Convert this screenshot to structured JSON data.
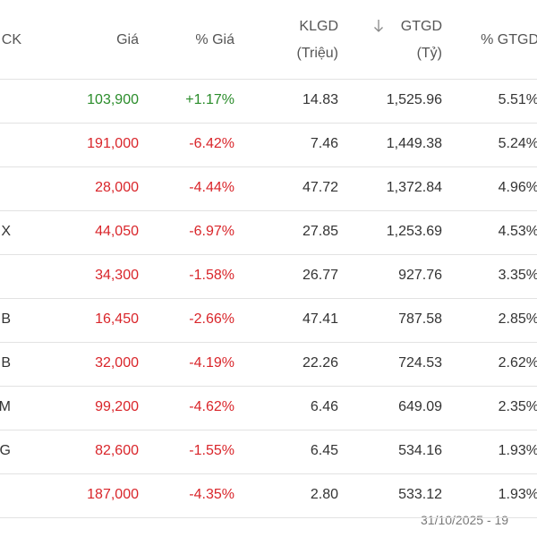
{
  "table": {
    "header": [
      "CK",
      "Giá",
      "% Giá",
      [
        "KLGD",
        "(Triệu)"
      ],
      [
        "GTGD",
        "(Tỷ)"
      ],
      "% GTGD"
    ],
    "rows": [
      [
        null,
        "103,900",
        "+1.17%",
        "14.83",
        "1,525.96",
        "5.51%"
      ],
      [
        null,
        "191,000",
        "-6.42%",
        "7.46",
        "1,449.38",
        "5.24%"
      ],
      [
        null,
        "28,000",
        "-4.44%",
        "47.72",
        "1,372.84",
        "4.96%"
      ],
      [
        "X",
        "44,050",
        "-6.97%",
        "27.85",
        "1,253.69",
        "4.53%"
      ],
      [
        null,
        "34,300",
        "-1.58%",
        "26.77",
        "927.76",
        "3.35%"
      ],
      [
        "B",
        "16,450",
        "-2.66%",
        "47.41",
        "787.58",
        "2.85%"
      ],
      [
        "B",
        "32,000",
        "-4.19%",
        "22.26",
        "724.53",
        "2.62%"
      ],
      [
        "M",
        "99,200",
        "-4.62%",
        "6.46",
        "649.09",
        "2.35%"
      ],
      [
        "G",
        "82,600",
        "-1.55%",
        "6.45",
        "534.16",
        "1.93%"
      ],
      [
        null,
        "187,000",
        "-4.35%",
        "2.80",
        "533.12",
        "1.93%"
      ]
    ],
    "colors": {
      "up": "#2a8c2a",
      "down": "#d9252a"
    }
  },
  "footer": "31/10/2025 - 19"
}
